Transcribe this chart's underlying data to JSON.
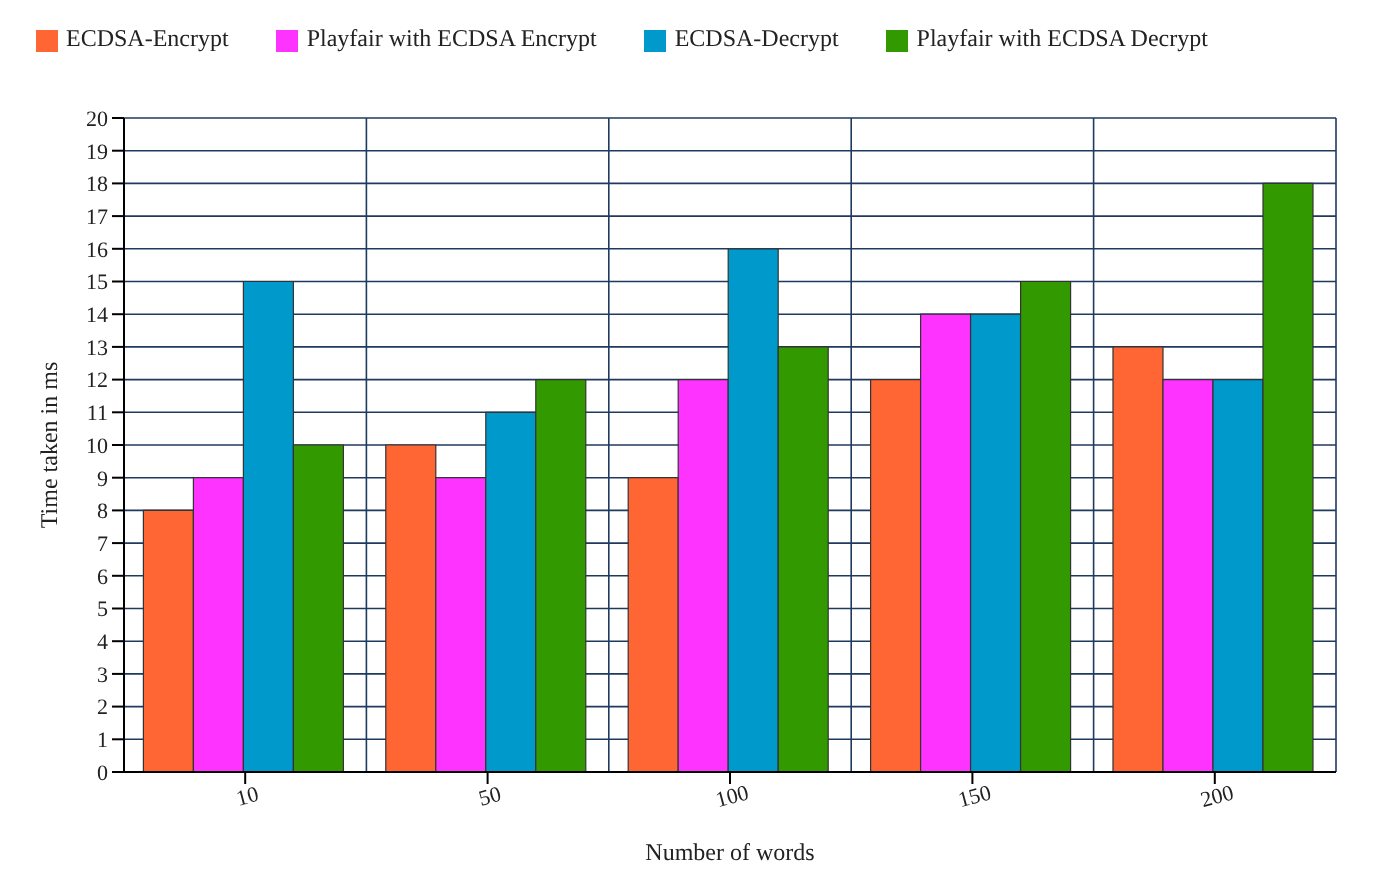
{
  "chart_data": {
    "type": "bar",
    "xlabel": "Number of words",
    "ylabel": "Time taken in ms",
    "categories": [
      "10",
      "50",
      "100",
      "150",
      "200"
    ],
    "series": [
      {
        "name": "ECDSA-Encrypt",
        "color": "#ff6633",
        "values": [
          8,
          10,
          9,
          12,
          13
        ]
      },
      {
        "name": "Playfair with ECDSA Encrypt",
        "color": "#ff33ff",
        "values": [
          9,
          9,
          12,
          14,
          12
        ]
      },
      {
        "name": "ECDSA-Decrypt",
        "color": "#0099cc",
        "values": [
          15,
          11,
          16,
          14,
          12
        ]
      },
      {
        "name": "Playfair with ECDSA Decrypt",
        "color": "#339900",
        "values": [
          10,
          12,
          13,
          15,
          18
        ]
      }
    ],
    "ylim": [
      0,
      20
    ],
    "yticks": [
      0,
      1,
      2,
      3,
      4,
      5,
      6,
      7,
      8,
      9,
      10,
      11,
      12,
      13,
      14,
      15,
      16,
      17,
      18,
      19,
      20
    ],
    "grid": true,
    "legend": "top left"
  }
}
